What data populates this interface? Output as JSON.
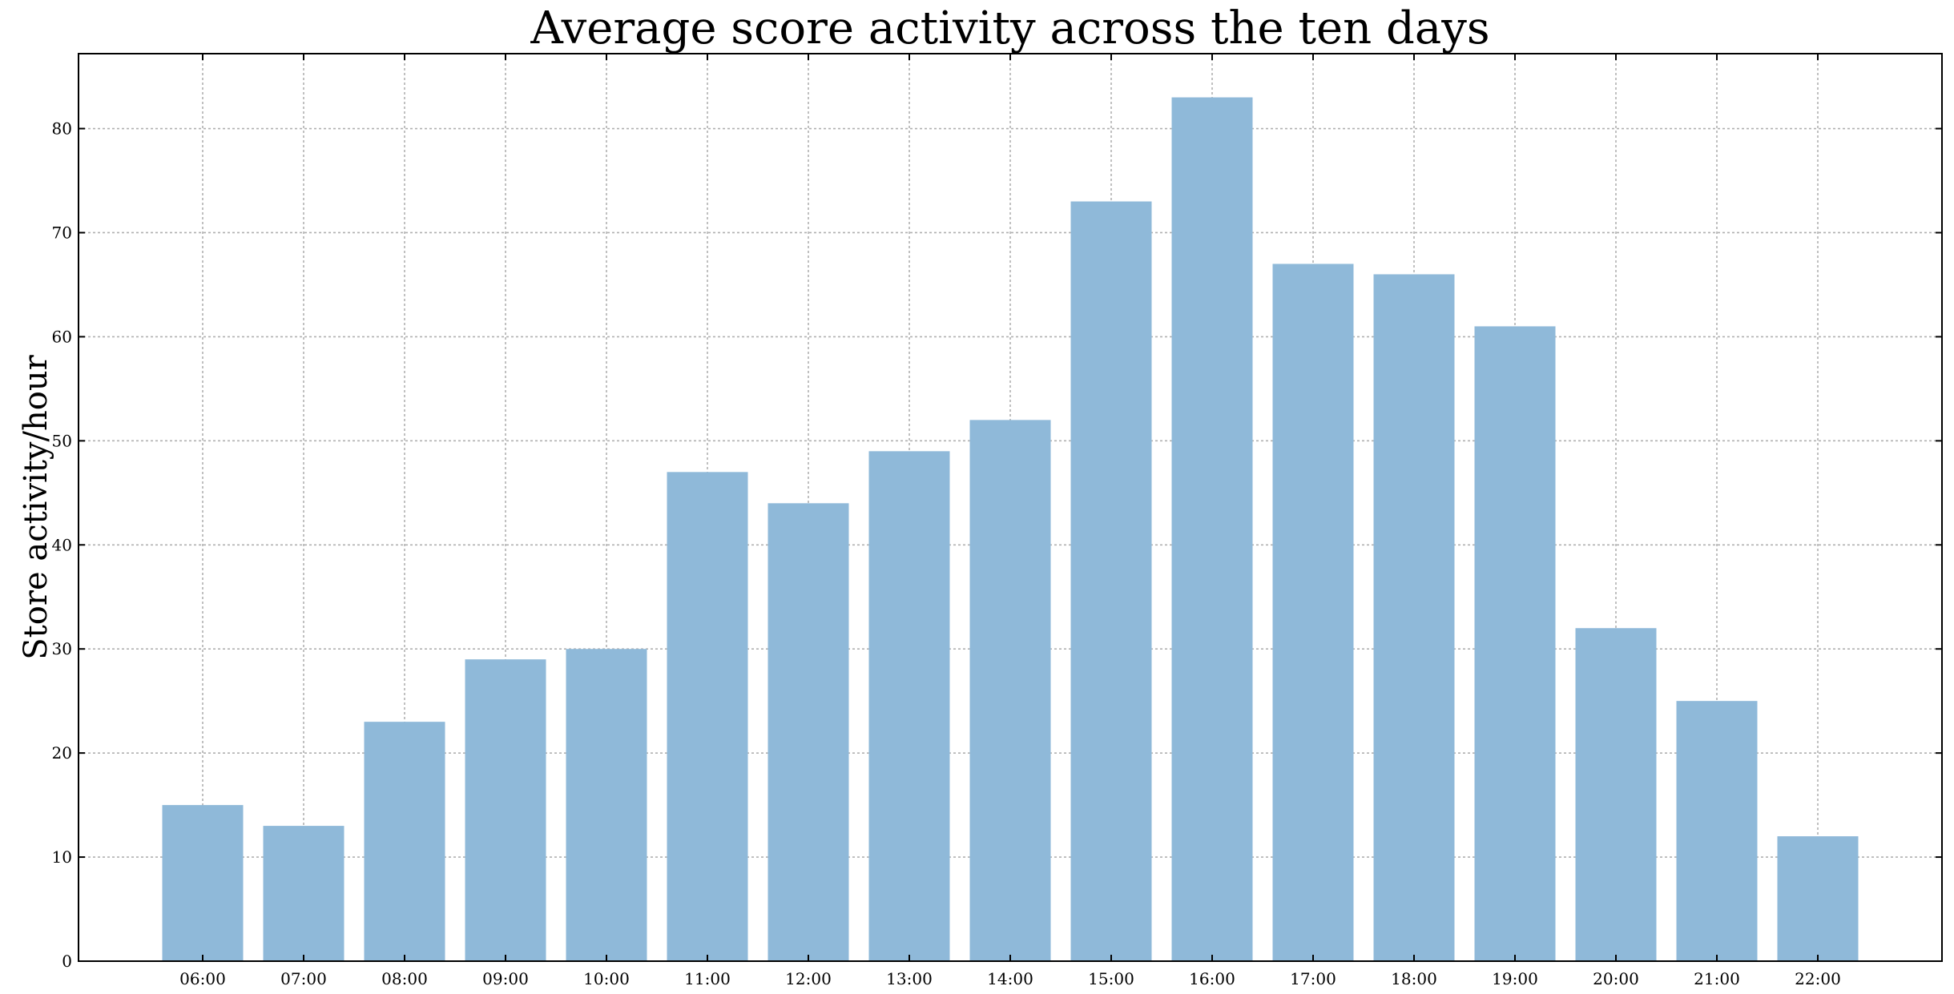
{
  "chart_data": {
    "type": "bar",
    "title": "Average score activity across the ten days",
    "xlabel": "",
    "ylabel": "Store activity/hour",
    "categories": [
      "06:00",
      "07:00",
      "08:00",
      "09:00",
      "10:00",
      "11:00",
      "12:00",
      "13:00",
      "14:00",
      "15:00",
      "16:00",
      "17:00",
      "18:00",
      "19:00",
      "20:00",
      "21:00",
      "22:00"
    ],
    "values": [
      15,
      13,
      23,
      29,
      30,
      47,
      44,
      49,
      52,
      73,
      83,
      67,
      66,
      61,
      32,
      25,
      12
    ],
    "ylim": [
      0,
      87.2
    ],
    "yticks": [
      0,
      10,
      20,
      30,
      40,
      50,
      60,
      70,
      80
    ],
    "grid": true,
    "bar_color": "#8fb9d9",
    "legend": "none"
  }
}
